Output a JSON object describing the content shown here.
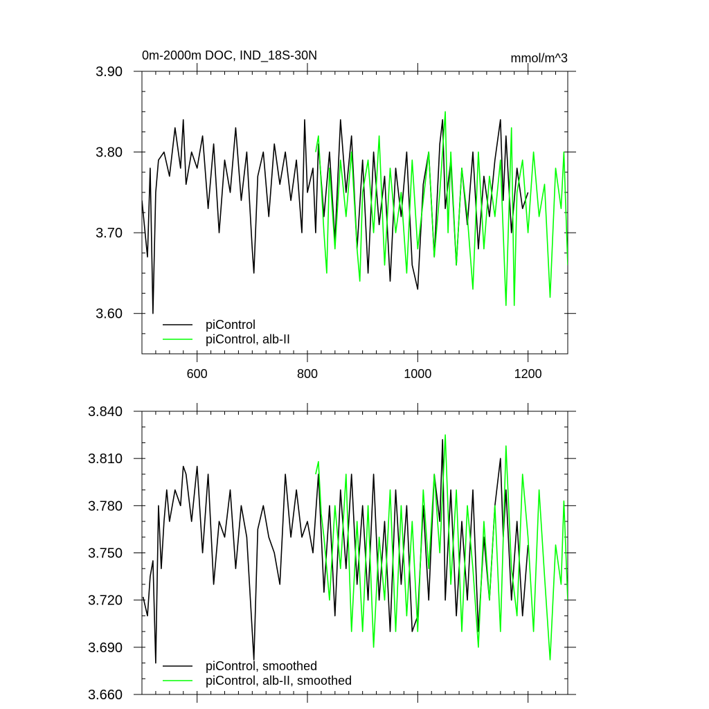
{
  "chart_data": [
    {
      "type": "line",
      "title": "0m-2000m DOC, IND_18S-30N",
      "units": "mmol/m^3",
      "xlim": [
        500,
        1272
      ],
      "ylim": [
        3.55,
        3.9
      ],
      "x_ticks": [
        600,
        800,
        1000,
        1200
      ],
      "x_tick_labels": [
        "600",
        "800",
        "1000",
        "1200"
      ],
      "y_ticks": [
        3.6,
        3.7,
        3.8,
        3.9
      ],
      "y_tick_labels": [
        "3.60",
        "3.70",
        "3.80",
        "3.90"
      ],
      "grid": false,
      "legend_position": "bottom-left",
      "series": [
        {
          "name": "piControl",
          "color": "#000000",
          "x": [
            500,
            510,
            515,
            520,
            525,
            530,
            540,
            550,
            560,
            570,
            575,
            580,
            590,
            600,
            610,
            620,
            630,
            640,
            650,
            660,
            670,
            680,
            690,
            700,
            703,
            710,
            720,
            730,
            740,
            750,
            760,
            770,
            780,
            790,
            795,
            800,
            810,
            815,
            820,
            830,
            840,
            850,
            860,
            870,
            880,
            890,
            900,
            910,
            920,
            930,
            940,
            950,
            960,
            970,
            980,
            990,
            1000,
            1010,
            1020,
            1030,
            1040,
            1045,
            1050,
            1060,
            1070,
            1080,
            1090,
            1100,
            1110,
            1120,
            1130,
            1140,
            1150,
            1155,
            1160,
            1170,
            1180,
            1190,
            1200
          ],
          "values": [
            3.74,
            3.67,
            3.78,
            3.6,
            3.75,
            3.79,
            3.8,
            3.77,
            3.83,
            3.78,
            3.84,
            3.76,
            3.8,
            3.78,
            3.82,
            3.73,
            3.81,
            3.7,
            3.79,
            3.75,
            3.83,
            3.74,
            3.8,
            3.68,
            3.65,
            3.77,
            3.8,
            3.72,
            3.81,
            3.76,
            3.8,
            3.74,
            3.79,
            3.7,
            3.84,
            3.75,
            3.78,
            3.7,
            3.81,
            3.72,
            3.8,
            3.69,
            3.84,
            3.75,
            3.82,
            3.68,
            3.79,
            3.65,
            3.8,
            3.71,
            3.77,
            3.64,
            3.78,
            3.72,
            3.8,
            3.66,
            3.63,
            3.76,
            3.8,
            3.67,
            3.81,
            3.84,
            3.73,
            3.79,
            3.66,
            3.78,
            3.71,
            3.8,
            3.68,
            3.77,
            3.72,
            3.79,
            3.84,
            3.74,
            3.82,
            3.7,
            3.78,
            3.73,
            3.75
          ]
        },
        {
          "name": "piControl, alb-II",
          "color": "#00ff00",
          "x": [
            815,
            820,
            830,
            835,
            840,
            850,
            860,
            870,
            880,
            890,
            895,
            900,
            910,
            920,
            930,
            940,
            950,
            960,
            970,
            980,
            990,
            1000,
            1010,
            1020,
            1030,
            1040,
            1050,
            1055,
            1060,
            1070,
            1080,
            1090,
            1100,
            1110,
            1120,
            1130,
            1140,
            1150,
            1160,
            1170,
            1175,
            1180,
            1190,
            1200,
            1210,
            1220,
            1230,
            1240,
            1250,
            1260,
            1265,
            1272
          ],
          "values": [
            3.8,
            3.82,
            3.7,
            3.65,
            3.78,
            3.68,
            3.79,
            3.72,
            3.8,
            3.68,
            3.64,
            3.75,
            3.79,
            3.7,
            3.82,
            3.66,
            3.78,
            3.7,
            3.75,
            3.65,
            3.79,
            3.68,
            3.74,
            3.8,
            3.67,
            3.75,
            3.85,
            3.7,
            3.8,
            3.66,
            3.78,
            3.72,
            3.63,
            3.8,
            3.68,
            3.77,
            3.72,
            3.79,
            3.61,
            3.83,
            3.61,
            3.75,
            3.79,
            3.7,
            3.8,
            3.72,
            3.76,
            3.62,
            3.78,
            3.73,
            3.8,
            3.66
          ]
        }
      ]
    },
    {
      "type": "line",
      "xlim": [
        500,
        1272
      ],
      "ylim": [
        3.66,
        3.84
      ],
      "x_ticks": [
        600,
        800,
        1000,
        1200
      ],
      "y_ticks": [
        3.66,
        3.69,
        3.72,
        3.75,
        3.78,
        3.81,
        3.84
      ],
      "y_tick_labels": [
        "3.660",
        "3.690",
        "3.720",
        "3.750",
        "3.780",
        "3.810",
        "3.840"
      ],
      "grid": false,
      "legend_position": "bottom-left",
      "series": [
        {
          "name": "piControl, smoothed",
          "color": "#000000",
          "x": [
            502,
            510,
            515,
            520,
            525,
            530,
            535,
            540,
            545,
            550,
            560,
            570,
            575,
            580,
            590,
            600,
            610,
            620,
            630,
            640,
            650,
            660,
            670,
            680,
            690,
            700,
            703,
            710,
            720,
            730,
            740,
            750,
            760,
            770,
            780,
            790,
            800,
            810,
            820,
            830,
            840,
            850,
            860,
            870,
            880,
            890,
            900,
            910,
            920,
            930,
            940,
            950,
            960,
            970,
            980,
            990,
            1000,
            1010,
            1020,
            1030,
            1040,
            1045,
            1050,
            1060,
            1070,
            1080,
            1090,
            1100,
            1110,
            1120,
            1130,
            1140,
            1150,
            1155,
            1160,
            1170,
            1180,
            1190,
            1200
          ],
          "values": [
            3.722,
            3.71,
            3.735,
            3.745,
            3.68,
            3.78,
            3.74,
            3.77,
            3.79,
            3.77,
            3.79,
            3.78,
            3.805,
            3.8,
            3.77,
            3.805,
            3.75,
            3.8,
            3.73,
            3.77,
            3.76,
            3.79,
            3.74,
            3.78,
            3.76,
            3.7,
            3.682,
            3.765,
            3.78,
            3.76,
            3.75,
            3.73,
            3.8,
            3.76,
            3.79,
            3.76,
            3.77,
            3.75,
            3.8,
            3.725,
            3.78,
            3.71,
            3.79,
            3.74,
            3.8,
            3.73,
            3.78,
            3.72,
            3.8,
            3.72,
            3.77,
            3.7,
            3.79,
            3.73,
            3.78,
            3.7,
            3.71,
            3.78,
            3.72,
            3.8,
            3.77,
            3.822,
            3.72,
            3.79,
            3.71,
            3.77,
            3.72,
            3.79,
            3.7,
            3.76,
            3.72,
            3.78,
            3.81,
            3.76,
            3.79,
            3.72,
            3.77,
            3.71,
            3.755
          ]
        },
        {
          "name": "piControl, alb-II, smoothed",
          "color": "#00ff00",
          "x": [
            815,
            820,
            825,
            830,
            840,
            850,
            860,
            870,
            880,
            890,
            900,
            910,
            920,
            930,
            940,
            950,
            960,
            970,
            980,
            990,
            1000,
            1010,
            1020,
            1030,
            1040,
            1050,
            1060,
            1070,
            1080,
            1090,
            1100,
            1110,
            1120,
            1130,
            1140,
            1150,
            1160,
            1170,
            1180,
            1190,
            1200,
            1210,
            1220,
            1230,
            1240,
            1250,
            1260,
            1265,
            1272
          ],
          "values": [
            3.8,
            3.808,
            3.775,
            3.76,
            3.72,
            3.78,
            3.74,
            3.8,
            3.7,
            3.77,
            3.7,
            3.78,
            3.69,
            3.76,
            3.72,
            3.79,
            3.7,
            3.78,
            3.71,
            3.77,
            3.7,
            3.79,
            3.74,
            3.8,
            3.75,
            3.825,
            3.73,
            3.79,
            3.7,
            3.78,
            3.74,
            3.69,
            3.77,
            3.72,
            3.78,
            3.7,
            3.818,
            3.74,
            3.71,
            3.8,
            3.76,
            3.7,
            3.79,
            3.735,
            3.682,
            3.755,
            3.73,
            3.783,
            3.72
          ]
        }
      ]
    }
  ]
}
